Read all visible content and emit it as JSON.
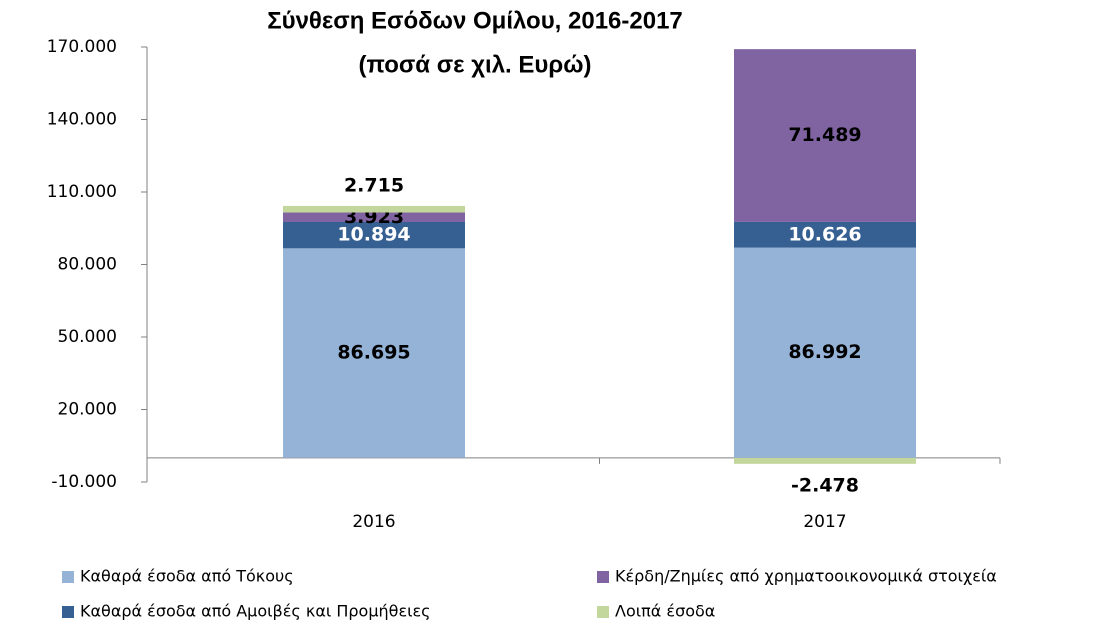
{
  "chart_data": {
    "type": "stacked_bar",
    "title": "Σύνθεση Εσόδων Ομίλου, 2016-2017",
    "subtitle": "(ποσά σε χιλ. Ευρώ)",
    "categories": [
      "2016",
      "2017"
    ],
    "series": [
      {
        "name": "Καθαρά έσοδα από Τόκους",
        "color": "#95b3d7",
        "values": [
          86695,
          86992
        ],
        "value_labels": [
          "86.695",
          "86.992"
        ]
      },
      {
        "name": "Καθαρά έσοδα από Αμοιβές και Προμήθειες",
        "color": "#366092",
        "values": [
          10894,
          10626
        ],
        "value_labels": [
          "10.894",
          "10.626"
        ]
      },
      {
        "name": "Κέρδη/Ζημίες από χρηματοοικονομικά στοιχεία",
        "color": "#8064a2",
        "values": [
          3923,
          71489
        ],
        "value_labels": [
          "3.923",
          "71.489"
        ]
      },
      {
        "name": "Λοιπά έσοδα",
        "color": "#c3d69b",
        "values": [
          2715,
          -2478
        ],
        "value_labels": [
          "2.715",
          "-2.478"
        ]
      }
    ],
    "ylim": [
      -10000,
      170000
    ],
    "yticks": [
      {
        "value": -10000,
        "label": "-10.000"
      },
      {
        "value": 20000,
        "label": "20.000"
      },
      {
        "value": 50000,
        "label": "50.000"
      },
      {
        "value": 80000,
        "label": "80.000"
      },
      {
        "value": 110000,
        "label": "110.000"
      },
      {
        "value": 140000,
        "label": "140.000"
      },
      {
        "value": 170000,
        "label": "170.000"
      }
    ],
    "legend": "bottom"
  }
}
